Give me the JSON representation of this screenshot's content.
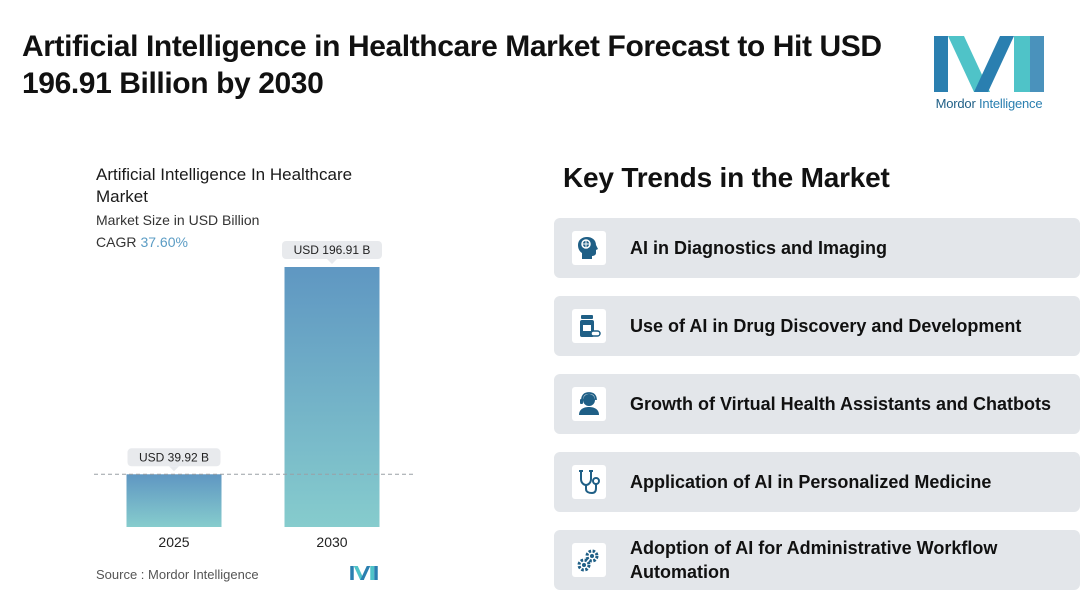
{
  "headline": "Artificial Intelligence in Healthcare Market Forecast to Hit USD 196.91 Billion by 2030",
  "brand": {
    "name_part1": "Mordor",
    "name_part2": " Intelligence",
    "colors": {
      "teal": "#4fc3c8",
      "blue": "#2a7fb0"
    }
  },
  "chart_data": {
    "type": "bar",
    "title": "Artificial Intelligence In Healthcare Market",
    "subtitle": "Market Size in USD Billion",
    "cagr_label": "CAGR",
    "cagr_value": "37.60%",
    "categories": [
      "2025",
      "2030"
    ],
    "values": [
      39.92,
      196.91
    ],
    "data_labels": [
      "USD 39.92 B",
      "USD 196.91 B"
    ],
    "unit": "USD Billion",
    "ylim": [
      0,
      196.91
    ],
    "grid": false,
    "reference_line": "dashed line at 2025 value",
    "colors": {
      "bar_top": "#5f97c2",
      "bar_bottom": "#86cccd",
      "label_bg": "#e8eaed"
    }
  },
  "source": {
    "label": "Source :",
    "value": "Mordor Intelligence"
  },
  "trends": {
    "title": "Key Trends in the Market",
    "items": [
      {
        "label": "AI in Diagnostics and Imaging",
        "icon": "brain-head-icon"
      },
      {
        "label": "Use of AI in Drug Discovery and Development",
        "icon": "medicine-bottle-icon"
      },
      {
        "label": "Growth of Virtual Health Assistants and Chatbots",
        "icon": "assistant-headset-icon"
      },
      {
        "label": "Application of AI in Personalized Medicine",
        "icon": "stethoscope-icon"
      },
      {
        "label": "Adoption of AI for Administrative Workflow Automation",
        "icon": "gears-icon"
      }
    ],
    "colors": {
      "card_bg": "#e3e6ea",
      "icon_color": "#1f5f86"
    }
  }
}
